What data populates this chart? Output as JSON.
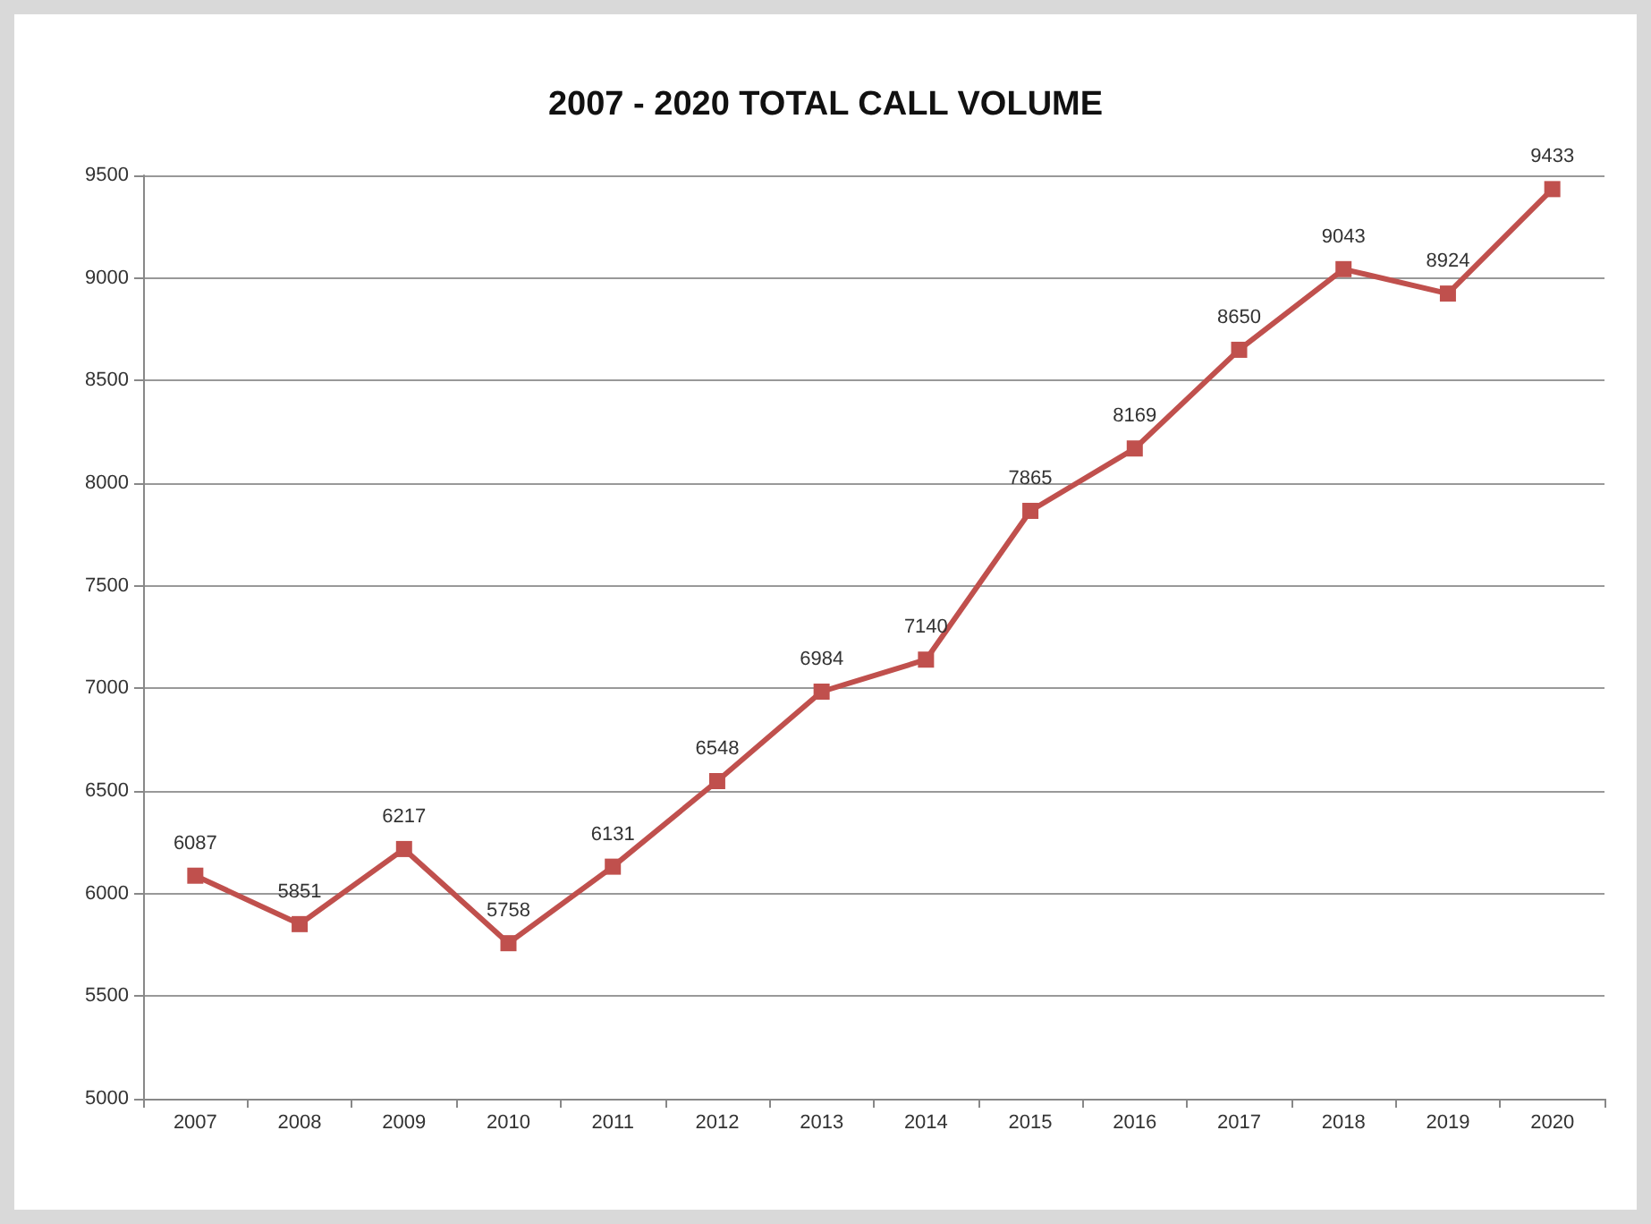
{
  "chart_data": {
    "type": "line",
    "title": "2007 - 2020 TOTAL CALL VOLUME",
    "categories": [
      "2007",
      "2008",
      "2009",
      "2010",
      "2011",
      "2012",
      "2013",
      "2014",
      "2015",
      "2016",
      "2017",
      "2018",
      "2019",
      "2020"
    ],
    "series": [
      {
        "color": "#c0504d",
        "values": [
          6087,
          5851,
          6217,
          5758,
          6131,
          6548,
          6984,
          7140,
          7865,
          8169,
          8650,
          9043,
          8924,
          9433
        ]
      }
    ],
    "ylim": [
      5000,
      9500
    ],
    "yticks": [
      5000,
      5500,
      6000,
      6500,
      7000,
      7500,
      8000,
      8500,
      9000,
      9500
    ],
    "grid": "y",
    "marker": "square",
    "line_style": "solid",
    "data_labels": true
  }
}
